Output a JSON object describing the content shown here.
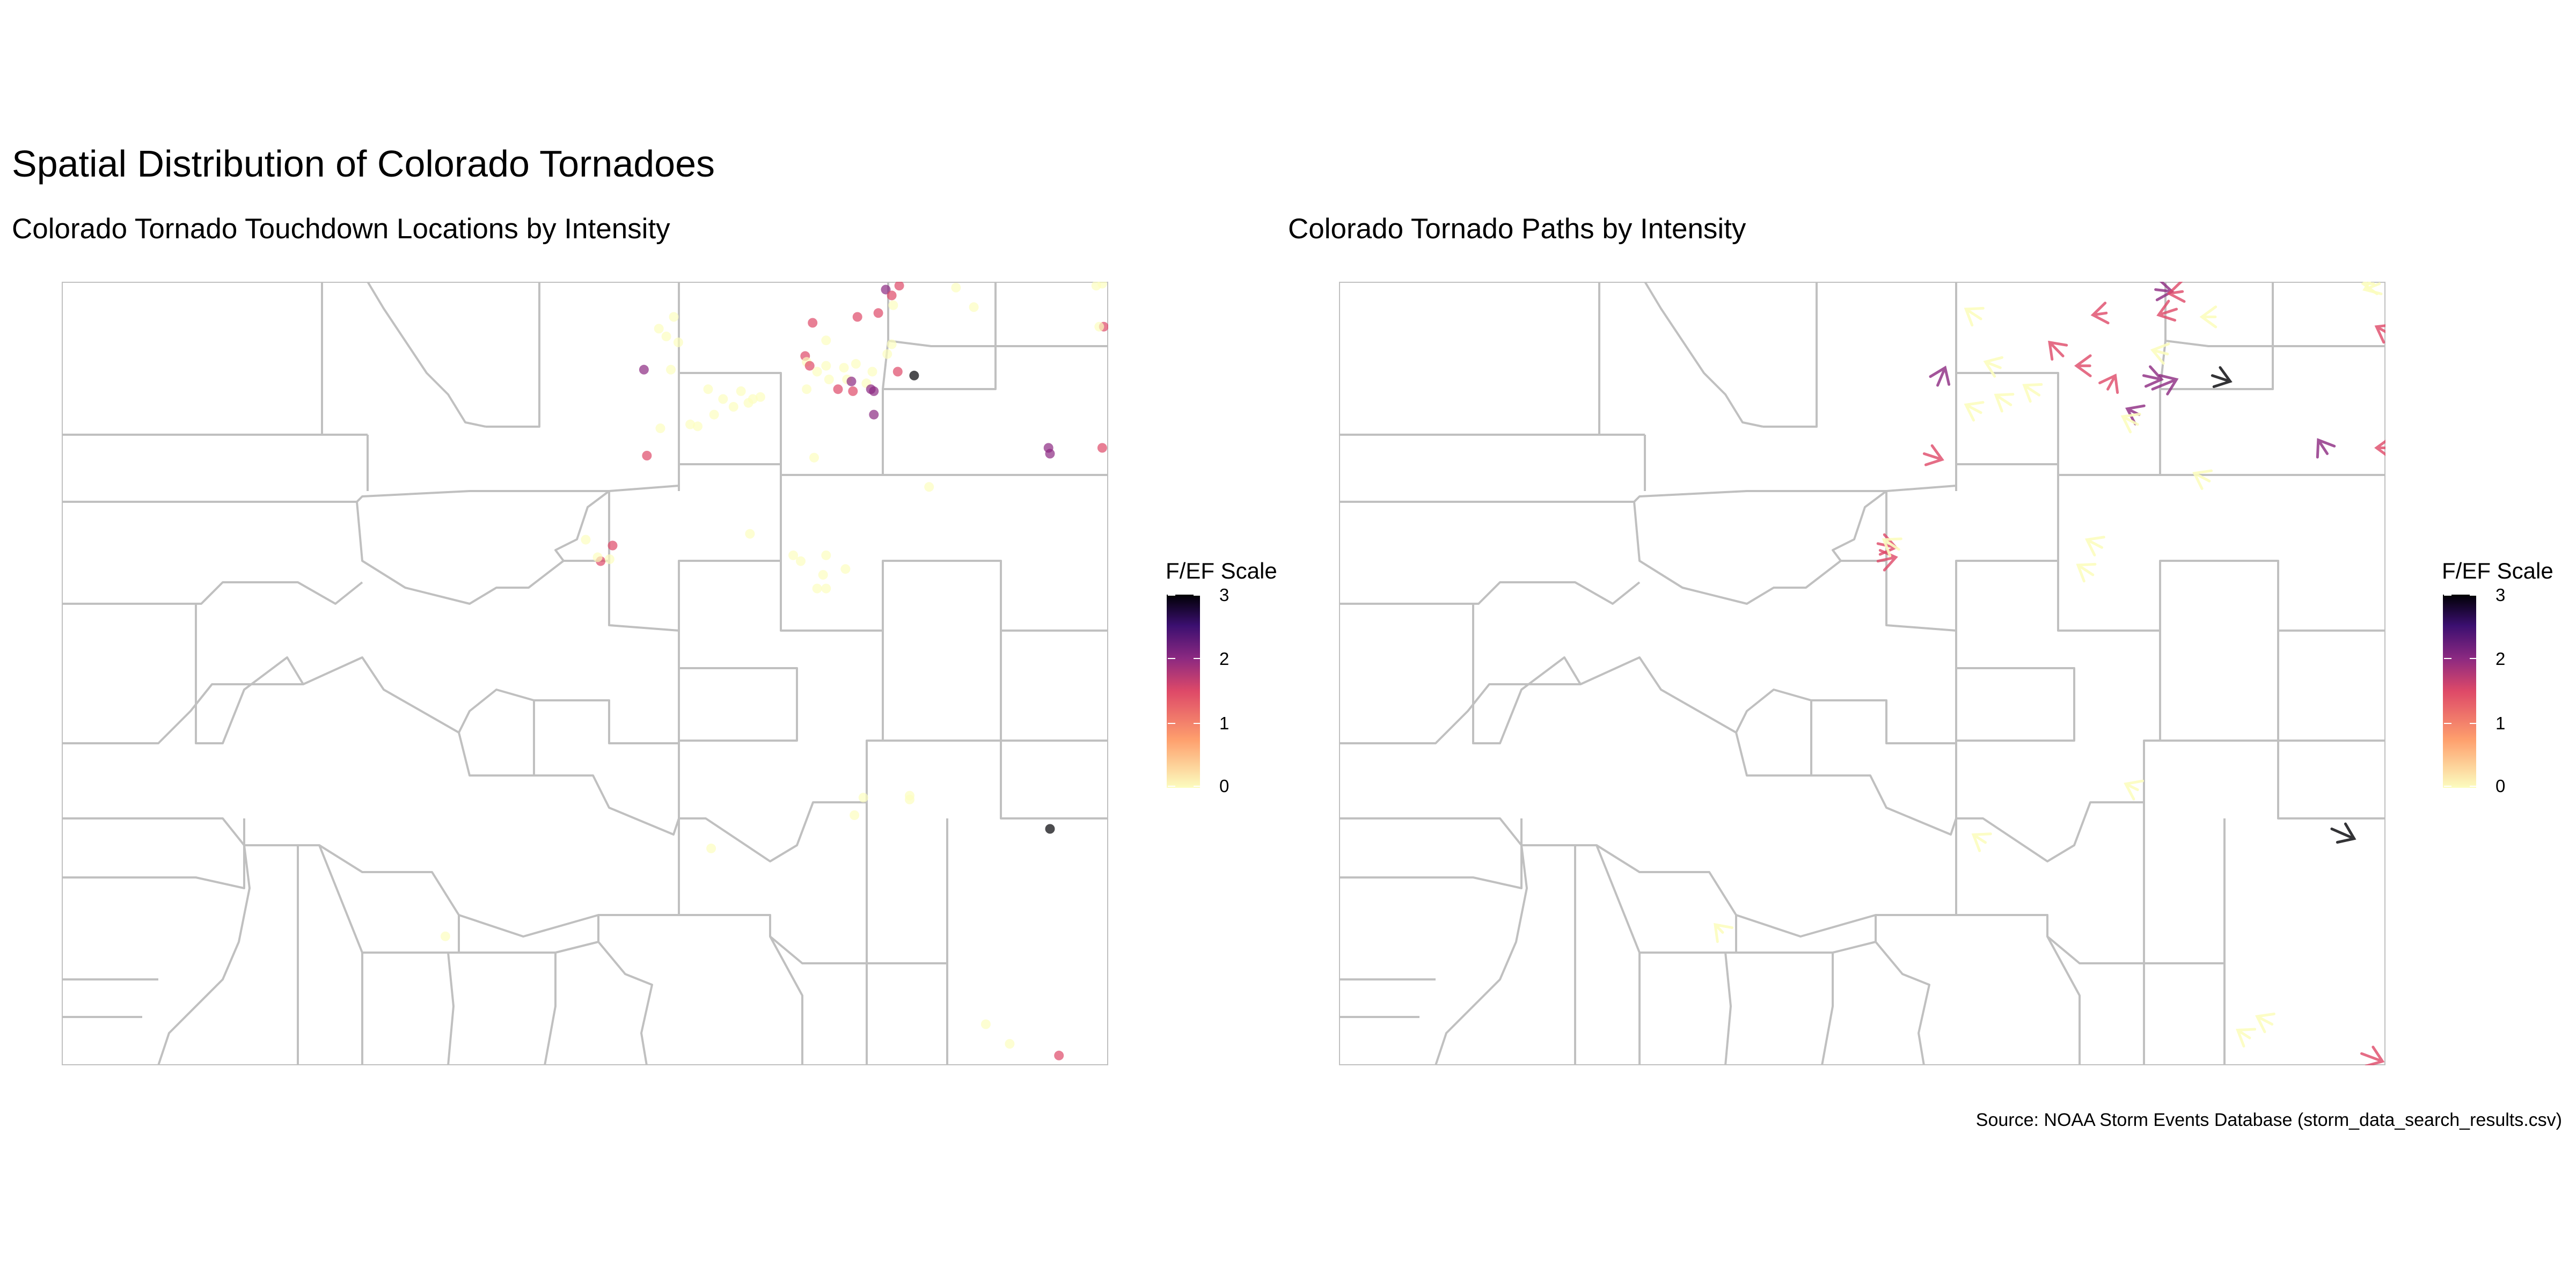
{
  "title": "Spatial Distribution of Colorado Tornadoes",
  "panels": {
    "left": {
      "subtitle": "Colorado Tornado Touchdown Locations by Intensity"
    },
    "right": {
      "subtitle": "Colorado Tornado Paths by Intensity"
    }
  },
  "legend": {
    "title": "F/EF Scale",
    "ticks": [
      "3",
      "2",
      "1",
      "0"
    ],
    "colors": {
      "3": "#000004",
      "2": "#8c2981",
      "1": "#de4968",
      "0": "#fcfdbf"
    }
  },
  "caption": "Source: NOAA Storm Events Database (storm_data_search_results.csv)",
  "chart_data": [
    {
      "type": "scatter",
      "title": "Colorado Tornado Touchdown Locations by Intensity",
      "xlabel": "",
      "ylabel": "",
      "xlim": [
        -109.05,
        -102.04
      ],
      "ylim": [
        36.99,
        41.0
      ],
      "color_scale": "F/EF Scale (magma)",
      "points": [
        {
          "x": -103.44,
          "y": 40.98,
          "ef": 1
        },
        {
          "x": -103.06,
          "y": 40.97,
          "ef": 0
        },
        {
          "x": -102.12,
          "y": 40.98,
          "ef": 0
        },
        {
          "x": -102.08,
          "y": 40.99,
          "ef": 0
        },
        {
          "x": -103.53,
          "y": 40.96,
          "ef": 2
        },
        {
          "x": -103.49,
          "y": 40.93,
          "ef": 1
        },
        {
          "x": -103.48,
          "y": 40.88,
          "ef": 0
        },
        {
          "x": -102.94,
          "y": 40.87,
          "ef": 0
        },
        {
          "x": -103.72,
          "y": 40.82,
          "ef": 1
        },
        {
          "x": -103.58,
          "y": 40.84,
          "ef": 1
        },
        {
          "x": -104.02,
          "y": 40.79,
          "ef": 1
        },
        {
          "x": -102.07,
          "y": 40.77,
          "ef": 1
        },
        {
          "x": -102.1,
          "y": 40.77,
          "ef": 0
        },
        {
          "x": -103.93,
          "y": 40.7,
          "ef": 0
        },
        {
          "x": -105.05,
          "y": 40.76,
          "ef": 0
        },
        {
          "x": -105.0,
          "y": 40.72,
          "ef": 0
        },
        {
          "x": -104.92,
          "y": 40.69,
          "ef": 0
        },
        {
          "x": -103.49,
          "y": 40.68,
          "ef": 0
        },
        {
          "x": -103.52,
          "y": 40.63,
          "ef": 0
        },
        {
          "x": -104.07,
          "y": 40.62,
          "ef": 1
        },
        {
          "x": -104.06,
          "y": 40.59,
          "ef": 0
        },
        {
          "x": -104.04,
          "y": 40.57,
          "ef": 1
        },
        {
          "x": -103.93,
          "y": 40.57,
          "ef": 0
        },
        {
          "x": -103.81,
          "y": 40.56,
          "ef": 0
        },
        {
          "x": -103.73,
          "y": 40.58,
          "ef": 0
        },
        {
          "x": -105.15,
          "y": 40.55,
          "ef": 2
        },
        {
          "x": -104.97,
          "y": 40.55,
          "ef": 0
        },
        {
          "x": -103.99,
          "y": 40.54,
          "ef": 0
        },
        {
          "x": -103.62,
          "y": 40.54,
          "ef": 0
        },
        {
          "x": -103.45,
          "y": 40.54,
          "ef": 1
        },
        {
          "x": -103.34,
          "y": 40.52,
          "ef": 3
        },
        {
          "x": -103.91,
          "y": 40.5,
          "ef": 0
        },
        {
          "x": -103.79,
          "y": 40.5,
          "ef": 0
        },
        {
          "x": -103.76,
          "y": 40.49,
          "ef": 2
        },
        {
          "x": -103.66,
          "y": 40.48,
          "ef": 0
        },
        {
          "x": -103.63,
          "y": 40.45,
          "ef": 2
        },
        {
          "x": -103.61,
          "y": 40.44,
          "ef": 2
        },
        {
          "x": -104.06,
          "y": 40.45,
          "ef": 0
        },
        {
          "x": -103.85,
          "y": 40.45,
          "ef": 1
        },
        {
          "x": -103.75,
          "y": 40.44,
          "ef": 1
        },
        {
          "x": -104.5,
          "y": 40.44,
          "ef": 0
        },
        {
          "x": -104.72,
          "y": 40.45,
          "ef": 0
        },
        {
          "x": -104.37,
          "y": 40.41,
          "ef": 0
        },
        {
          "x": -104.42,
          "y": 40.4,
          "ef": 0
        },
        {
          "x": -104.45,
          "y": 40.38,
          "ef": 0
        },
        {
          "x": -104.55,
          "y": 40.36,
          "ef": 0
        },
        {
          "x": -103.61,
          "y": 40.32,
          "ef": 2
        },
        {
          "x": -104.68,
          "y": 40.32,
          "ef": 0
        },
        {
          "x": -104.84,
          "y": 40.27,
          "ef": 0
        },
        {
          "x": -104.79,
          "y": 40.26,
          "ef": 0
        },
        {
          "x": -105.04,
          "y": 40.25,
          "ef": 0
        },
        {
          "x": -102.44,
          "y": 40.15,
          "ef": 2
        },
        {
          "x": -102.43,
          "y": 40.12,
          "ef": 2
        },
        {
          "x": -102.08,
          "y": 40.15,
          "ef": 1
        },
        {
          "x": -105.13,
          "y": 40.11,
          "ef": 1
        },
        {
          "x": -104.01,
          "y": 40.1,
          "ef": 0
        },
        {
          "x": -103.24,
          "y": 39.95,
          "ef": 0
        },
        {
          "x": -104.44,
          "y": 39.71,
          "ef": 0
        },
        {
          "x": -103.93,
          "y": 39.6,
          "ef": 0
        },
        {
          "x": -104.15,
          "y": 39.6,
          "ef": 0
        },
        {
          "x": -104.1,
          "y": 39.57,
          "ef": 0
        },
        {
          "x": -103.8,
          "y": 39.53,
          "ef": 0
        },
        {
          "x": -103.95,
          "y": 39.5,
          "ef": 0
        },
        {
          "x": -103.93,
          "y": 39.43,
          "ef": 0
        },
        {
          "x": -103.99,
          "y": 39.43,
          "ef": 0
        },
        {
          "x": -105.54,
          "y": 39.68,
          "ef": 0
        },
        {
          "x": -105.36,
          "y": 39.65,
          "ef": 1
        },
        {
          "x": -105.44,
          "y": 39.57,
          "ef": 1
        },
        {
          "x": -105.38,
          "y": 39.58,
          "ef": 0
        },
        {
          "x": -105.46,
          "y": 39.59,
          "ef": 0
        },
        {
          "x": -103.68,
          "y": 38.36,
          "ef": 0
        },
        {
          "x": -103.37,
          "y": 38.37,
          "ef": 0
        },
        {
          "x": -103.37,
          "y": 38.35,
          "ef": 0
        },
        {
          "x": -102.43,
          "y": 38.2,
          "ef": 3
        },
        {
          "x": -103.74,
          "y": 38.27,
          "ef": 0
        },
        {
          "x": -104.7,
          "y": 38.1,
          "ef": 0
        },
        {
          "x": -106.48,
          "y": 37.65,
          "ef": 0
        },
        {
          "x": -102.86,
          "y": 37.2,
          "ef": 0
        },
        {
          "x": -102.7,
          "y": 37.1,
          "ef": 0
        },
        {
          "x": -102.37,
          "y": 37.04,
          "ef": 1
        },
        {
          "x": -104.95,
          "y": 40.82,
          "ef": 0
        },
        {
          "x": -104.62,
          "y": 40.4,
          "ef": 0
        }
      ]
    },
    {
      "type": "scatter",
      "title": "Colorado Tornado Paths by Intensity",
      "xlabel": "",
      "ylabel": "",
      "xlim": [
        -109.05,
        -102.04
      ],
      "ylim": [
        36.99,
        41.0
      ],
      "color_scale": "F/EF Scale (magma)",
      "paths": [
        {
          "x": -103.58,
          "y": 40.96,
          "dx": 0.11,
          "dy": -0.01,
          "ef": 2
        },
        {
          "x": -103.4,
          "y": 40.95,
          "dx": -0.09,
          "dy": -0.01,
          "ef": 1
        },
        {
          "x": -103.44,
          "y": 40.86,
          "dx": -0.12,
          "dy": -0.03,
          "ef": 1
        },
        {
          "x": -103.91,
          "y": 40.84,
          "dx": -0.09,
          "dy": -0.01,
          "ef": 1
        },
        {
          "x": -103.18,
          "y": 40.82,
          "dx": -0.09,
          "dy": 0,
          "ef": 0
        },
        {
          "x": -102.03,
          "y": 40.74,
          "dx": -0.07,
          "dy": 0.03,
          "ef": 1
        },
        {
          "x": -102.12,
          "y": 40.99,
          "dx": -0.07,
          "dy": 0,
          "ef": 0
        },
        {
          "x": -104.2,
          "y": 40.62,
          "dx": -0.09,
          "dy": 0.07,
          "ef": 1
        },
        {
          "x": -104.02,
          "y": 40.57,
          "dx": -0.09,
          "dy": 0,
          "ef": 1
        },
        {
          "x": -105.04,
          "y": 40.47,
          "dx": 0.05,
          "dy": 0.09,
          "ef": 2
        },
        {
          "x": -103.66,
          "y": 40.52,
          "dx": 0.12,
          "dy": -0.02,
          "ef": 2
        },
        {
          "x": -103.6,
          "y": 40.45,
          "dx": 0.16,
          "dy": 0.05,
          "ef": 2
        },
        {
          "x": -103.2,
          "y": 40.52,
          "dx": 0.12,
          "dy": -0.03,
          "ef": 3
        },
        {
          "x": -103.69,
          "y": 40.32,
          "dx": -0.08,
          "dy": 0.03,
          "ef": 2
        },
        {
          "x": -103.9,
          "y": 40.45,
          "dx": 0.05,
          "dy": 0.07,
          "ef": 1
        },
        {
          "x": -102.43,
          "y": 40.12,
          "dx": -0.06,
          "dy": 0.07,
          "ef": 2
        },
        {
          "x": -102.02,
          "y": 40.15,
          "dx": -0.08,
          "dy": 0,
          "ef": 1
        },
        {
          "x": -105.13,
          "y": 40.12,
          "dx": 0.12,
          "dy": -0.03,
          "ef": 1
        },
        {
          "x": -105.44,
          "y": 39.66,
          "dx": 0.12,
          "dy": -0.02,
          "ef": 1
        },
        {
          "x": -105.44,
          "y": 39.57,
          "dx": 0.12,
          "dy": 0.02,
          "ef": 1
        },
        {
          "x": -102.4,
          "y": 38.2,
          "dx": 0.15,
          "dy": -0.05,
          "ef": 3
        },
        {
          "x": -102.2,
          "y": 37.05,
          "dx": 0.14,
          "dy": -0.04,
          "ef": 1
        },
        {
          "x": -104.75,
          "y": 40.81,
          "dx": -0.1,
          "dy": 0.05,
          "ef": 0
        },
        {
          "x": -104.62,
          "y": 40.56,
          "dx": -0.1,
          "dy": 0.03,
          "ef": 0
        },
        {
          "x": -104.36,
          "y": 40.42,
          "dx": -0.1,
          "dy": 0.05,
          "ef": 0
        },
        {
          "x": -104.55,
          "y": 40.37,
          "dx": -0.1,
          "dy": 0.05,
          "ef": 0
        },
        {
          "x": -104.75,
          "y": 40.33,
          "dx": -0.1,
          "dy": 0.04,
          "ef": 0
        },
        {
          "x": -103.5,
          "y": 40.63,
          "dx": -0.1,
          "dy": 0.02,
          "ef": 0
        },
        {
          "x": -103.7,
          "y": 40.27,
          "dx": -0.1,
          "dy": 0.04,
          "ef": 0
        },
        {
          "x": -102.08,
          "y": 40.99,
          "dx": -0.1,
          "dy": -0.03,
          "ef": 0
        },
        {
          "x": -103.94,
          "y": 39.64,
          "dx": -0.1,
          "dy": 0.04,
          "ef": 0
        },
        {
          "x": -104.0,
          "y": 39.5,
          "dx": -0.1,
          "dy": 0.05,
          "ef": 0
        },
        {
          "x": -105.3,
          "y": 39.63,
          "dx": -0.1,
          "dy": 0.05,
          "ef": 0
        },
        {
          "x": -103.22,
          "y": 39.98,
          "dx": -0.1,
          "dy": 0.04,
          "ef": 0
        },
        {
          "x": -102.8,
          "y": 37.2,
          "dx": -0.1,
          "dy": 0.04,
          "ef": 0
        },
        {
          "x": -102.95,
          "y": 37.13,
          "dx": -0.08,
          "dy": 0.04,
          "ef": 0
        },
        {
          "x": -104.72,
          "y": 38.13,
          "dx": -0.08,
          "dy": 0.04,
          "ef": 0
        },
        {
          "x": -106.48,
          "y": 37.67,
          "dx": -0.05,
          "dy": 0.04,
          "ef": 0
        },
        {
          "x": -103.7,
          "y": 38.4,
          "dx": -0.08,
          "dy": 0.03,
          "ef": 0
        }
      ]
    }
  ]
}
